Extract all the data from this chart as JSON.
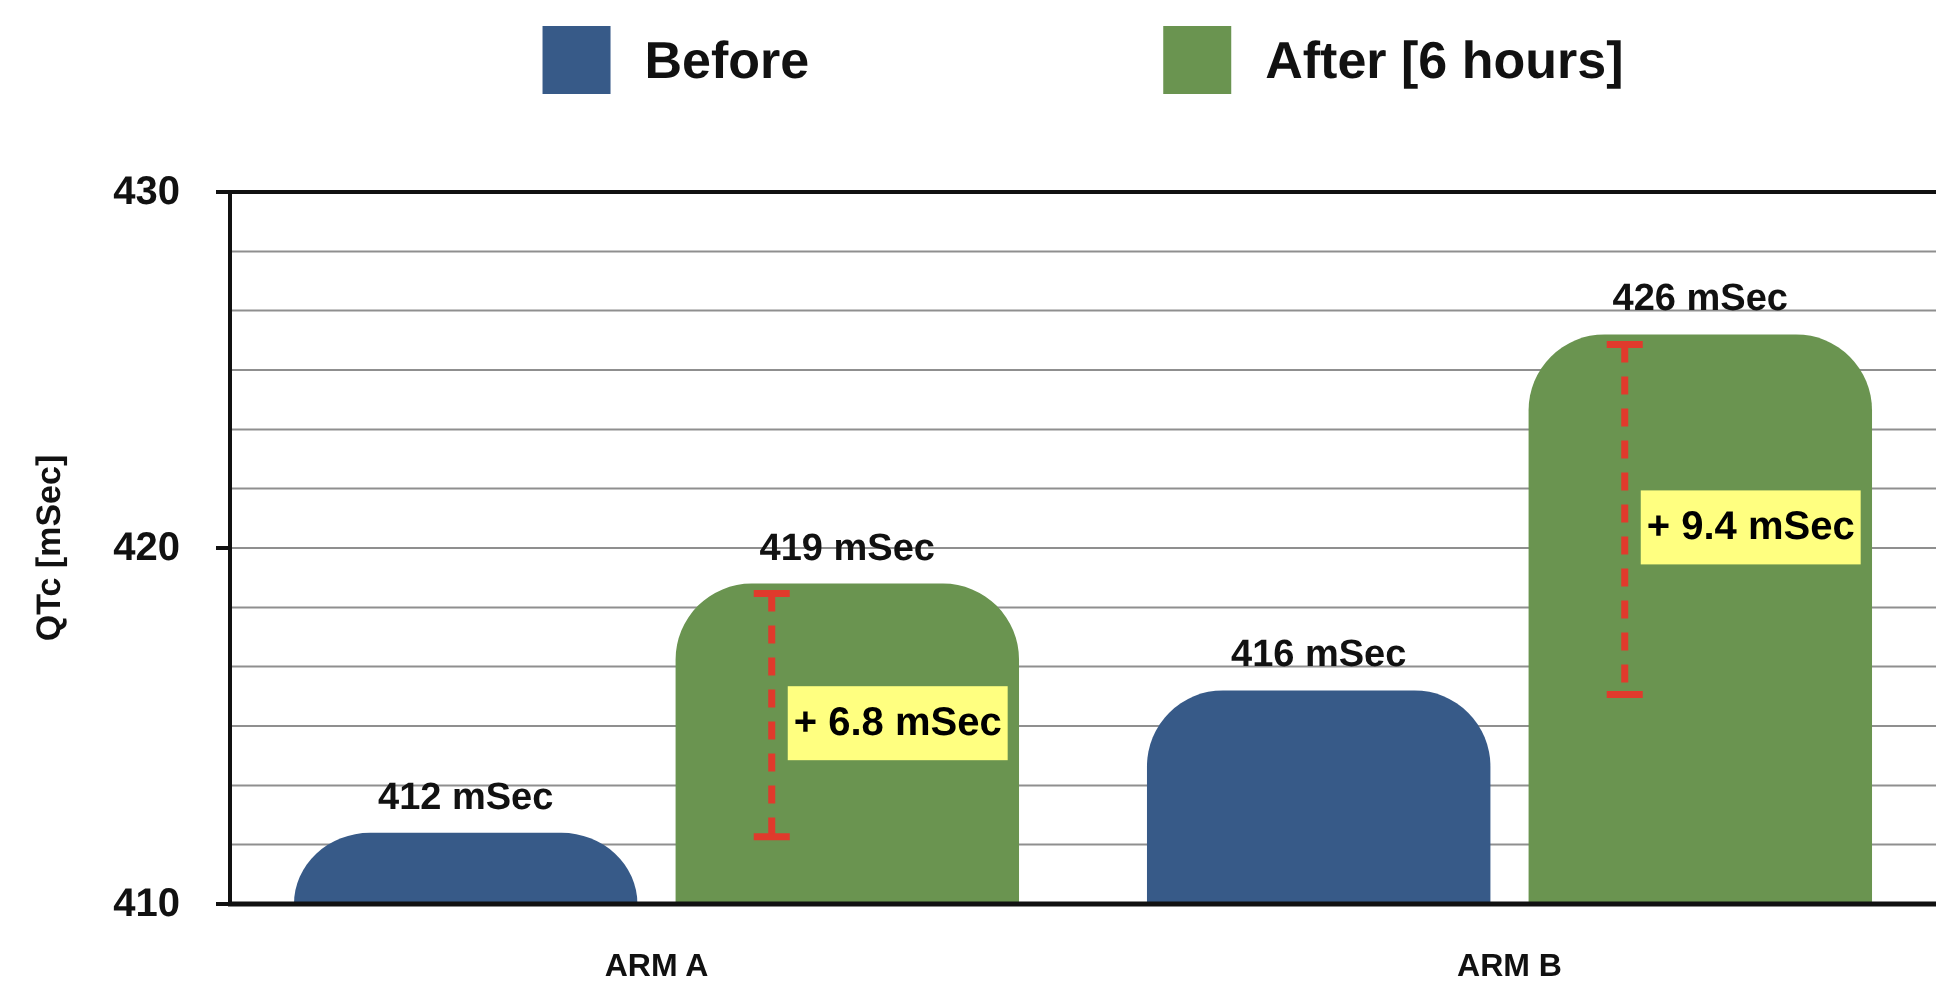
{
  "chart_data": {
    "type": "bar",
    "categories": [
      "ARM A",
      "ARM B"
    ],
    "series": [
      {
        "name": "Before",
        "color": "#375a88",
        "values": [
          412,
          416
        ],
        "value_labels": [
          "412 mSec",
          "416 mSec"
        ]
      },
      {
        "name": "After [6 hours]",
        "color": "#6a9450",
        "values": [
          419,
          426
        ],
        "value_labels": [
          "419 mSec",
          "426 mSec"
        ]
      }
    ],
    "ylabel": "QTc [mSec]",
    "ylim": [
      410,
      430
    ],
    "yticks": [
      410,
      {
        "value": 411.67,
        "label": null
      },
      {
        "value": 413.33,
        "label": null
      },
      {
        "value": 415,
        "label": null
      },
      {
        "value": 416.67,
        "label": null
      },
      {
        "value": 418.33,
        "label": null
      },
      420,
      {
        "value": 421.67,
        "label": null
      },
      {
        "value": 423.33,
        "label": null
      },
      {
        "value": 425,
        "label": null
      },
      {
        "value": 426.67,
        "label": null
      },
      {
        "value": 428.33,
        "label": null
      },
      430
    ],
    "grid": "y",
    "legend": "top",
    "annotations": [
      "+ 6.8 mSec",
      "+ 9.4 mSec"
    ]
  }
}
